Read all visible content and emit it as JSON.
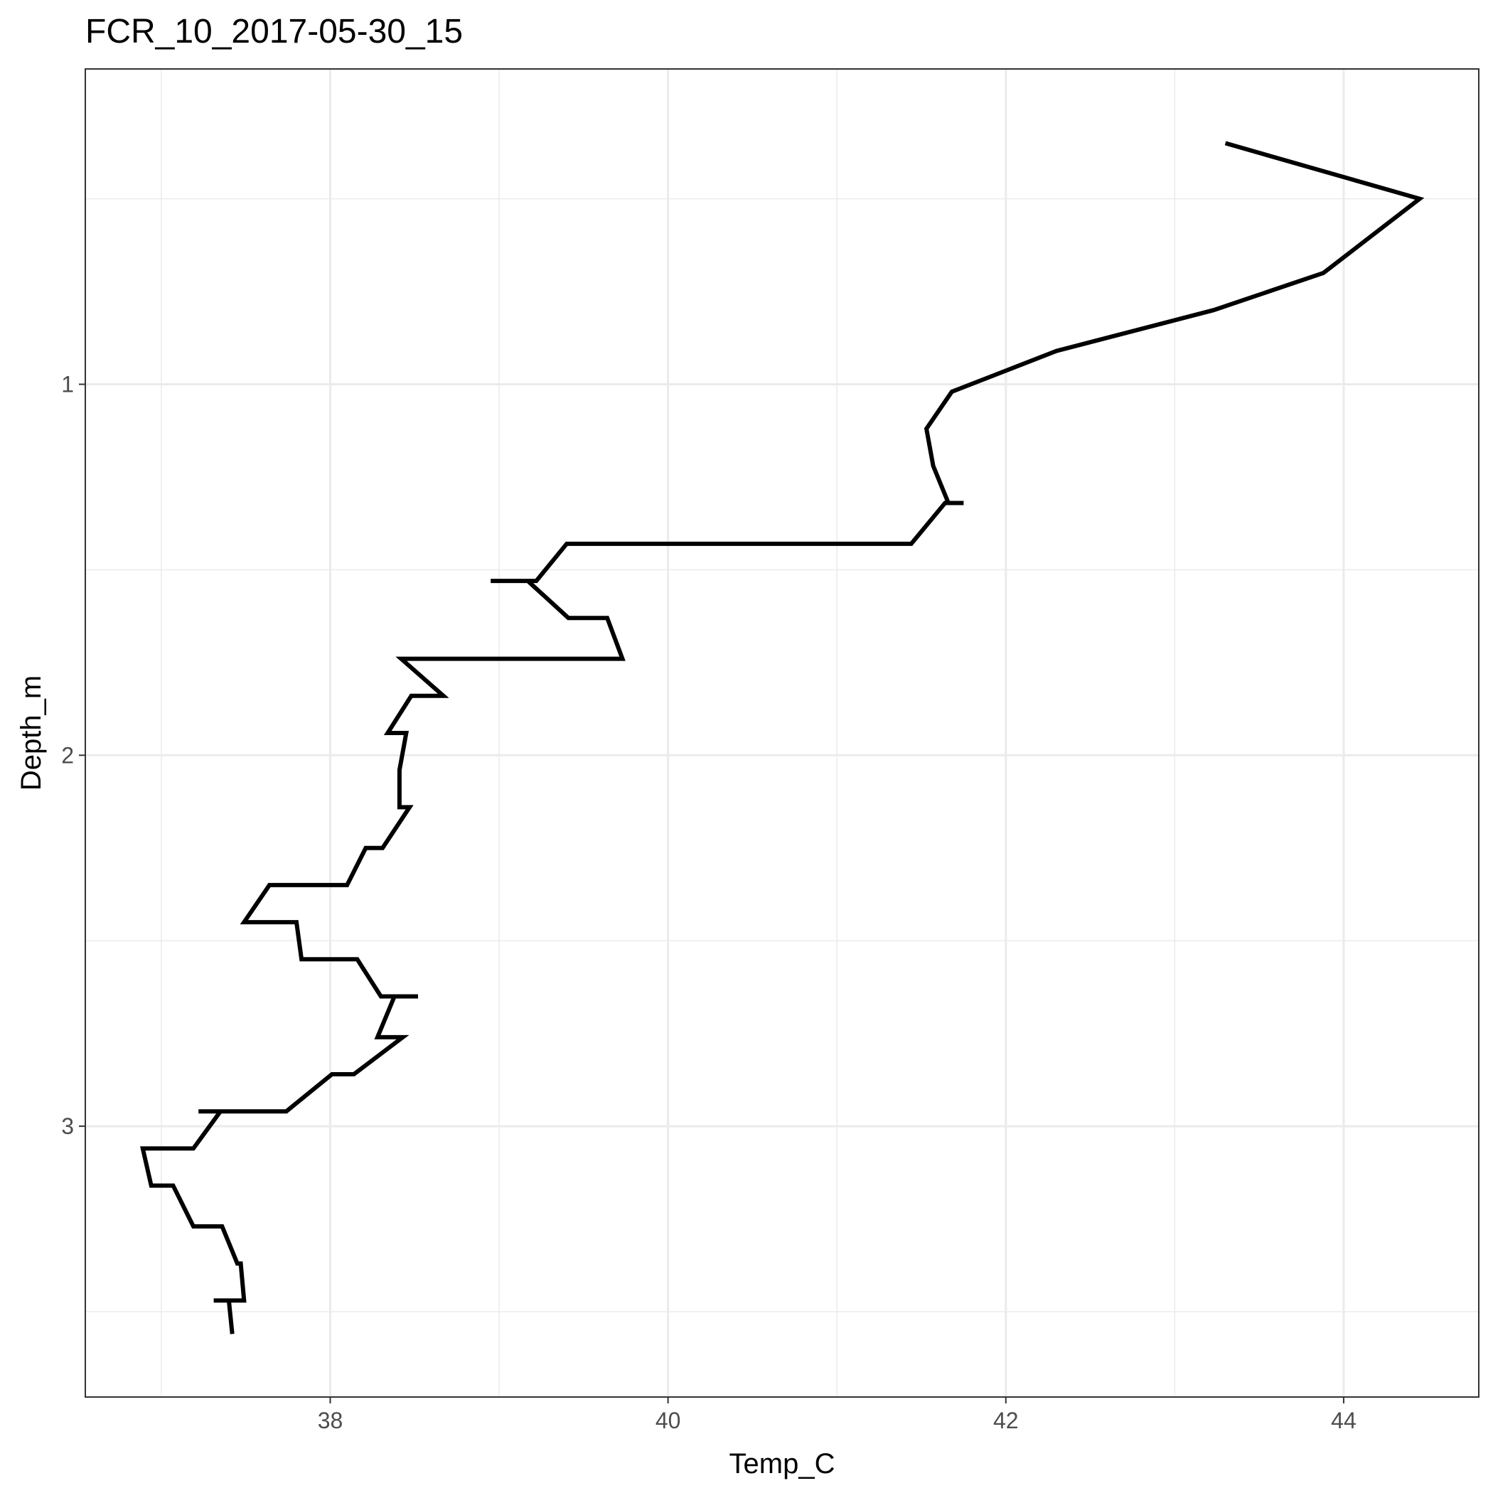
{
  "chart_data": {
    "type": "line",
    "title": "FCR_10_2017-05-30_15",
    "xlabel": "Temp_C",
    "ylabel": "Depth_m",
    "xlim": [
      36.55,
      44.8
    ],
    "ylim": [
      0.15,
      3.73
    ],
    "y_reversed": true,
    "x_ticks": [
      38,
      40,
      42,
      44
    ],
    "y_ticks": [
      1,
      2,
      3
    ],
    "x_minor": [
      37,
      39,
      41,
      43
    ],
    "y_minor": [
      0.5,
      1.5,
      2.5,
      3.5
    ],
    "grid": true,
    "legend": "none",
    "line_color": "#000000",
    "series": [
      {
        "x": [
          43.3,
          44.45,
          43.88,
          43.23,
          42.3,
          41.68,
          41.53,
          41.57,
          41.66,
          41.75,
          41.64,
          41.44,
          39.4,
          39.22,
          38.95,
          39.17,
          39.41,
          39.64,
          39.73,
          38.42,
          38.67,
          38.48,
          38.34,
          38.45,
          38.41,
          38.41,
          38.47,
          38.31,
          38.21,
          38.1,
          37.64,
          37.49,
          37.8,
          37.83,
          38.16,
          38.3,
          38.52,
          38.38,
          38.28,
          38.43,
          38.14,
          38.01,
          37.74,
          37.22,
          37.35,
          37.19,
          36.89,
          36.94,
          37.07,
          37.19,
          37.36,
          37.45,
          37.47,
          37.49,
          37.31,
          37.4,
          37.42
        ],
        "y": [
          0.35,
          0.5,
          0.7,
          0.8,
          0.91,
          1.02,
          1.12,
          1.22,
          1.32,
          1.32,
          1.32,
          1.43,
          1.43,
          1.53,
          1.53,
          1.53,
          1.63,
          1.63,
          1.74,
          1.74,
          1.84,
          1.84,
          1.94,
          1.94,
          2.04,
          2.14,
          2.14,
          2.25,
          2.25,
          2.35,
          2.35,
          2.45,
          2.45,
          2.55,
          2.55,
          2.65,
          2.65,
          2.65,
          2.76,
          2.76,
          2.86,
          2.86,
          2.96,
          2.96,
          2.96,
          3.06,
          3.06,
          3.16,
          3.16,
          3.27,
          3.27,
          3.37,
          3.37,
          3.47,
          3.47,
          3.47,
          3.56
        ]
      }
    ]
  }
}
